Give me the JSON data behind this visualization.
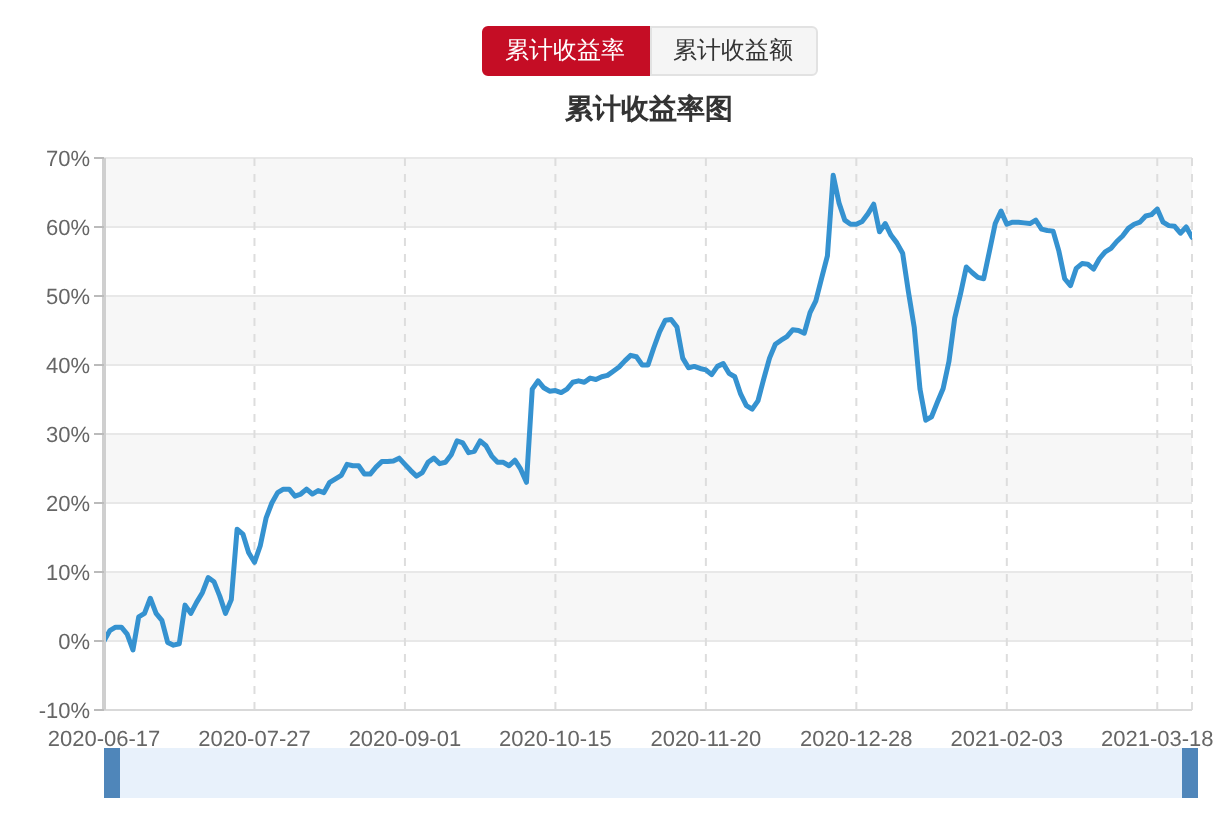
{
  "chart_data": {
    "type": "line",
    "title": "累计收益率图",
    "annotations": [
      "累计收益率",
      "累计收益额"
    ],
    "categories": [
      "2020-06-17",
      null,
      null,
      null,
      null,
      null,
      null,
      null,
      null,
      null,
      null,
      null,
      null,
      null,
      null,
      null,
      null,
      null,
      null,
      null,
      null,
      null,
      null,
      null,
      null,
      null,
      "2020-07-27",
      null,
      null,
      null,
      null,
      null,
      null,
      null,
      null,
      null,
      null,
      null,
      null,
      null,
      null,
      null,
      null,
      null,
      null,
      null,
      null,
      null,
      null,
      null,
      null,
      null,
      "2020-09-01",
      null,
      null,
      null,
      null,
      null,
      null,
      null,
      null,
      null,
      null,
      null,
      null,
      null,
      null,
      null,
      null,
      null,
      null,
      null,
      null,
      null,
      null,
      null,
      null,
      null,
      "2020-10-15",
      null,
      null,
      null,
      null,
      null,
      null,
      null,
      null,
      null,
      null,
      null,
      null,
      null,
      null,
      null,
      null,
      null,
      null,
      null,
      null,
      null,
      null,
      null,
      null,
      null,
      "2020-11-20",
      null,
      null,
      null,
      null,
      null,
      null,
      null,
      null,
      null,
      null,
      null,
      null,
      null,
      null,
      null,
      null,
      null,
      null,
      null,
      null,
      null,
      null,
      null,
      null,
      null,
      "2020-12-28",
      null,
      null,
      null,
      null,
      null,
      null,
      null,
      null,
      null,
      null,
      null,
      null,
      null,
      null,
      null,
      null,
      null,
      null,
      null,
      null,
      null,
      null,
      null,
      null,
      null,
      "2021-02-03",
      null,
      null,
      null,
      null,
      null,
      null,
      null,
      null,
      null,
      null,
      null,
      null,
      null,
      null,
      null,
      null,
      null,
      null,
      null,
      null,
      null,
      null,
      null,
      null,
      null,
      "2021-03-18",
      null,
      null,
      null,
      null,
      null,
      null
    ],
    "values": [
      0,
      1.5,
      2.0,
      2.0,
      1.0,
      -1.3,
      3.5,
      4.0,
      6.2,
      4.0,
      3.0,
      -0.2,
      -0.6,
      -0.4,
      5.2,
      4.0,
      5.6,
      7.0,
      9.2,
      8.6,
      6.5,
      4.0,
      6.0,
      16.2,
      15.5,
      12.8,
      11.4,
      13.8,
      17.8,
      20.0,
      21.5,
      22.0,
      22.0,
      21.0,
      21.3,
      22.0,
      21.3,
      21.8,
      21.5,
      23.0,
      23.5,
      24.0,
      25.6,
      25.4,
      25.4,
      24.2,
      24.2,
      25.2,
      26.0,
      26.0,
      26.1,
      26.5,
      25.6,
      24.7,
      23.9,
      24.4,
      25.9,
      26.5,
      25.7,
      25.9,
      27.0,
      29.0,
      28.7,
      27.3,
      27.5,
      29.0,
      28.3,
      26.8,
      25.9,
      25.9,
      25.4,
      26.2,
      24.9,
      23.0,
      36.5,
      37.7,
      36.7,
      36.2,
      36.3,
      36.0,
      36.5,
      37.5,
      37.7,
      37.5,
      38.1,
      37.9,
      38.3,
      38.5,
      39.1,
      39.7,
      40.6,
      41.4,
      41.2,
      40.0,
      40.0,
      42.5,
      44.8,
      46.5,
      46.6,
      45.5,
      41.0,
      39.6,
      39.8,
      39.5,
      39.3,
      38.6,
      39.8,
      40.2,
      38.8,
      38.3,
      35.8,
      34.1,
      33.6,
      34.8,
      38.0,
      41.0,
      43.0,
      43.6,
      44.1,
      45.1,
      45.0,
      44.6,
      47.6,
      49.3,
      52.6,
      55.8,
      67.5,
      63.5,
      61.0,
      60.4,
      60.4,
      60.8,
      61.9,
      63.3,
      59.3,
      60.5,
      58.8,
      57.7,
      56.2,
      50.6,
      45.5,
      36.5,
      32.0,
      32.5,
      34.6,
      36.6,
      40.5,
      46.8,
      50.3,
      54.2,
      53.4,
      52.7,
      52.5,
      56.5,
      60.5,
      62.3,
      60.4,
      60.7,
      60.7,
      60.6,
      60.5,
      61.0,
      59.7,
      59.5,
      59.4,
      56.5,
      52.5,
      51.5,
      54.0,
      54.7,
      54.6,
      53.9,
      55.4,
      56.4,
      56.9,
      57.9,
      58.7,
      59.8,
      60.4,
      60.7,
      61.6,
      61.8,
      62.6,
      60.7,
      60.2,
      60.1,
      59.1,
      60.0,
      58.5
    ],
    "color": "#3592d0",
    "ylim": [
      -10,
      70
    ],
    "yticks": [
      {
        "value": -10,
        "label": "-10%"
      },
      {
        "value": 0,
        "label": "0%"
      },
      {
        "value": 10,
        "label": "10%"
      },
      {
        "value": 20,
        "label": "20%"
      },
      {
        "value": 30,
        "label": "30%"
      },
      {
        "value": 40,
        "label": "40%"
      },
      {
        "value": 50,
        "label": "50%"
      },
      {
        "value": 60,
        "label": "60%"
      },
      {
        "value": 70,
        "label": "70%"
      }
    ],
    "grid": true,
    "marker": "none"
  }
}
